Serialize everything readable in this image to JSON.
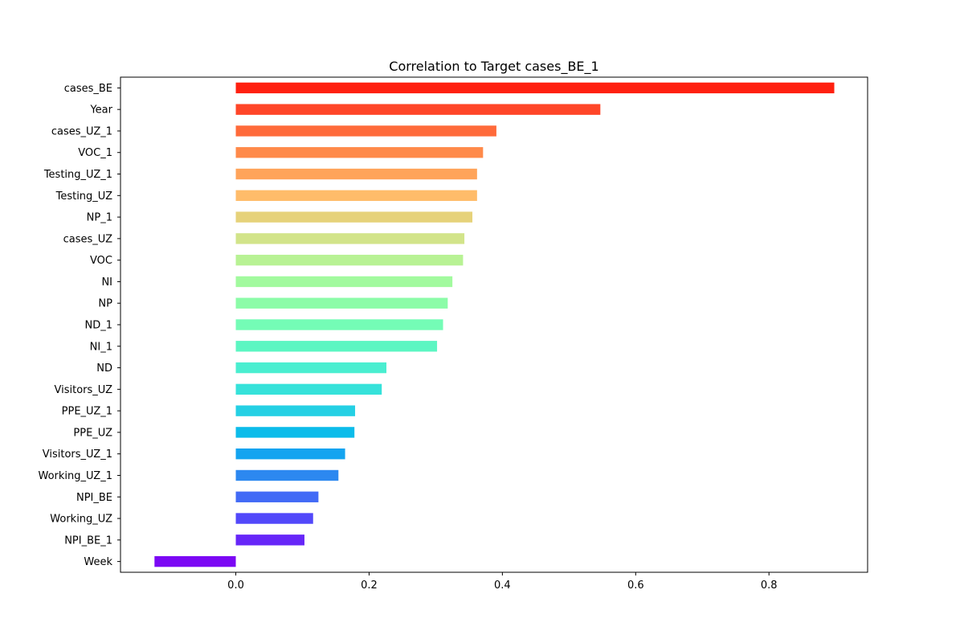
{
  "chart_data": {
    "type": "bar",
    "orientation": "horizontal",
    "title": "Correlation to Target cases_BE_1",
    "xlabel": "",
    "ylabel": "",
    "xlim": [
      -0.173,
      0.948
    ],
    "xticks": [
      "0.0",
      "0.2",
      "0.4",
      "0.6",
      "0.8"
    ],
    "grid": false,
    "categories": [
      "cases_BE",
      "Year",
      "cases_UZ_1",
      "VOC_1",
      "Testing_UZ_1",
      "Testing_UZ",
      "NP_1",
      "cases_UZ",
      "VOC",
      "NI",
      "NP",
      "ND_1",
      "NI_1",
      "ND",
      "Visitors_UZ",
      "PPE_UZ_1",
      "PPE_UZ",
      "Visitors_UZ_1",
      "Working_UZ_1",
      "NPI_BE",
      "Working_UZ",
      "NPI_BE_1",
      "Week"
    ],
    "values": [
      0.898,
      0.547,
      0.391,
      0.371,
      0.362,
      0.362,
      0.355,
      0.343,
      0.341,
      0.325,
      0.318,
      0.311,
      0.302,
      0.226,
      0.219,
      0.179,
      0.178,
      0.164,
      0.154,
      0.124,
      0.116,
      0.103,
      -0.122
    ],
    "colors": [
      "#ff2010",
      "#ff4628",
      "#ff6a3a",
      "#ff8a4a",
      "#ffa45a",
      "#ffbc6a",
      "#e6d27a",
      "#d2e48a",
      "#b8f294",
      "#a2fa9e",
      "#8cfca8",
      "#74fcb6",
      "#5cf6c2",
      "#4aeed0",
      "#36e2da",
      "#24d0e4",
      "#0cbcea",
      "#14a4f0",
      "#2c88f0",
      "#426af6",
      "#5248fa",
      "#6626f8",
      "#7b08f4"
    ]
  }
}
